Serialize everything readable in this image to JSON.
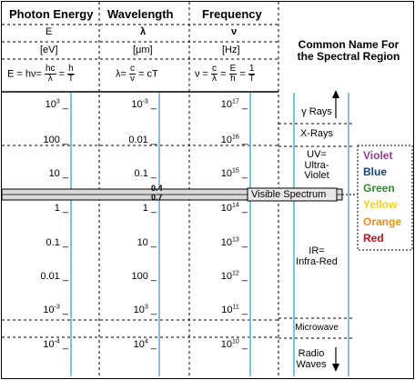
{
  "headers": {
    "energy": "Photon Energy",
    "wavelength": "Wavelength",
    "frequency": "Frequency",
    "common_name": "Common Name For the Spectral Region"
  },
  "symbols": {
    "energy": "E",
    "wavelength": "λ",
    "frequency": "ν"
  },
  "units": {
    "energy": "[eV]",
    "wavelength": "[μm]",
    "frequency": "[Hz]"
  },
  "formulas": {
    "energy": {
      "lhs": "E = hν=",
      "f1_num": "hc",
      "f1_den": "λ",
      "mid": "=",
      "f2_num": "h",
      "f2_den": "T"
    },
    "wavelength": {
      "lhs": "λ=",
      "f1_num": "c",
      "f1_den": "ν",
      "rhs": "= cT"
    },
    "frequency": {
      "lhs": "ν =",
      "f1_num": "c",
      "f1_den": "λ",
      "mid1": "=",
      "f2_num": "E",
      "f2_den": "h",
      "mid2": "=",
      "f3_num": "1",
      "f3_den": "T"
    }
  },
  "rows": [
    {
      "energy": "10",
      "energy_exp": "3",
      "wavelength": "10",
      "wavelength_exp": "-3",
      "frequency": "10",
      "frequency_exp": "17"
    },
    {
      "energy": "100",
      "energy_exp": "",
      "wavelength": "0.01",
      "wavelength_exp": "",
      "frequency": "10",
      "frequency_exp": "16"
    },
    {
      "energy": "10",
      "energy_exp": "",
      "wavelength": "0.1",
      "wavelength_exp": "",
      "frequency": "10",
      "frequency_exp": "15"
    },
    {
      "energy": "1",
      "energy_exp": "",
      "wavelength": "1",
      "wavelength_exp": "",
      "frequency": "10",
      "frequency_exp": "14"
    },
    {
      "energy": "0.1",
      "energy_exp": "",
      "wavelength": "10",
      "wavelength_exp": "",
      "frequency": "10",
      "frequency_exp": "13"
    },
    {
      "energy": "0.01",
      "energy_exp": "",
      "wavelength": "100",
      "wavelength_exp": "",
      "frequency": "10",
      "frequency_exp": "12"
    },
    {
      "energy": "10",
      "energy_exp": "-3",
      "wavelength": "10",
      "wavelength_exp": "3",
      "frequency": "10",
      "frequency_exp": "11"
    },
    {
      "energy": "10",
      "energy_exp": "-4",
      "wavelength": "10",
      "wavelength_exp": "4",
      "frequency": "10",
      "frequency_exp": "10"
    }
  ],
  "visible_band": {
    "wl_top": "0.4",
    "wl_bottom": "0.7",
    "label": "Visible Spectrum"
  },
  "regions": {
    "gamma": "γ Rays",
    "xray": "X-Rays",
    "uv_1": "UV=",
    "uv_2": "Ultra-",
    "uv_3": "Violet",
    "ir_1": "IR=",
    "ir_2": "Infra-Red",
    "microwave": "Microwave",
    "radio_1": "Radio",
    "radio_2": "Waves"
  },
  "visible_colors": [
    {
      "name": "Violet",
      "color": "#8e3f8e"
    },
    {
      "name": "Blue",
      "color": "#1f3f7a"
    },
    {
      "name": "Green",
      "color": "#2e8b2e"
    },
    {
      "name": "Yellow",
      "color": "#f2d21a"
    },
    {
      "name": "Orange",
      "color": "#e8901c"
    },
    {
      "name": "Red",
      "color": "#b0141e"
    }
  ],
  "colors": {
    "axis_line": "#4fb3d9",
    "band_fill": "#d9d9d9"
  }
}
